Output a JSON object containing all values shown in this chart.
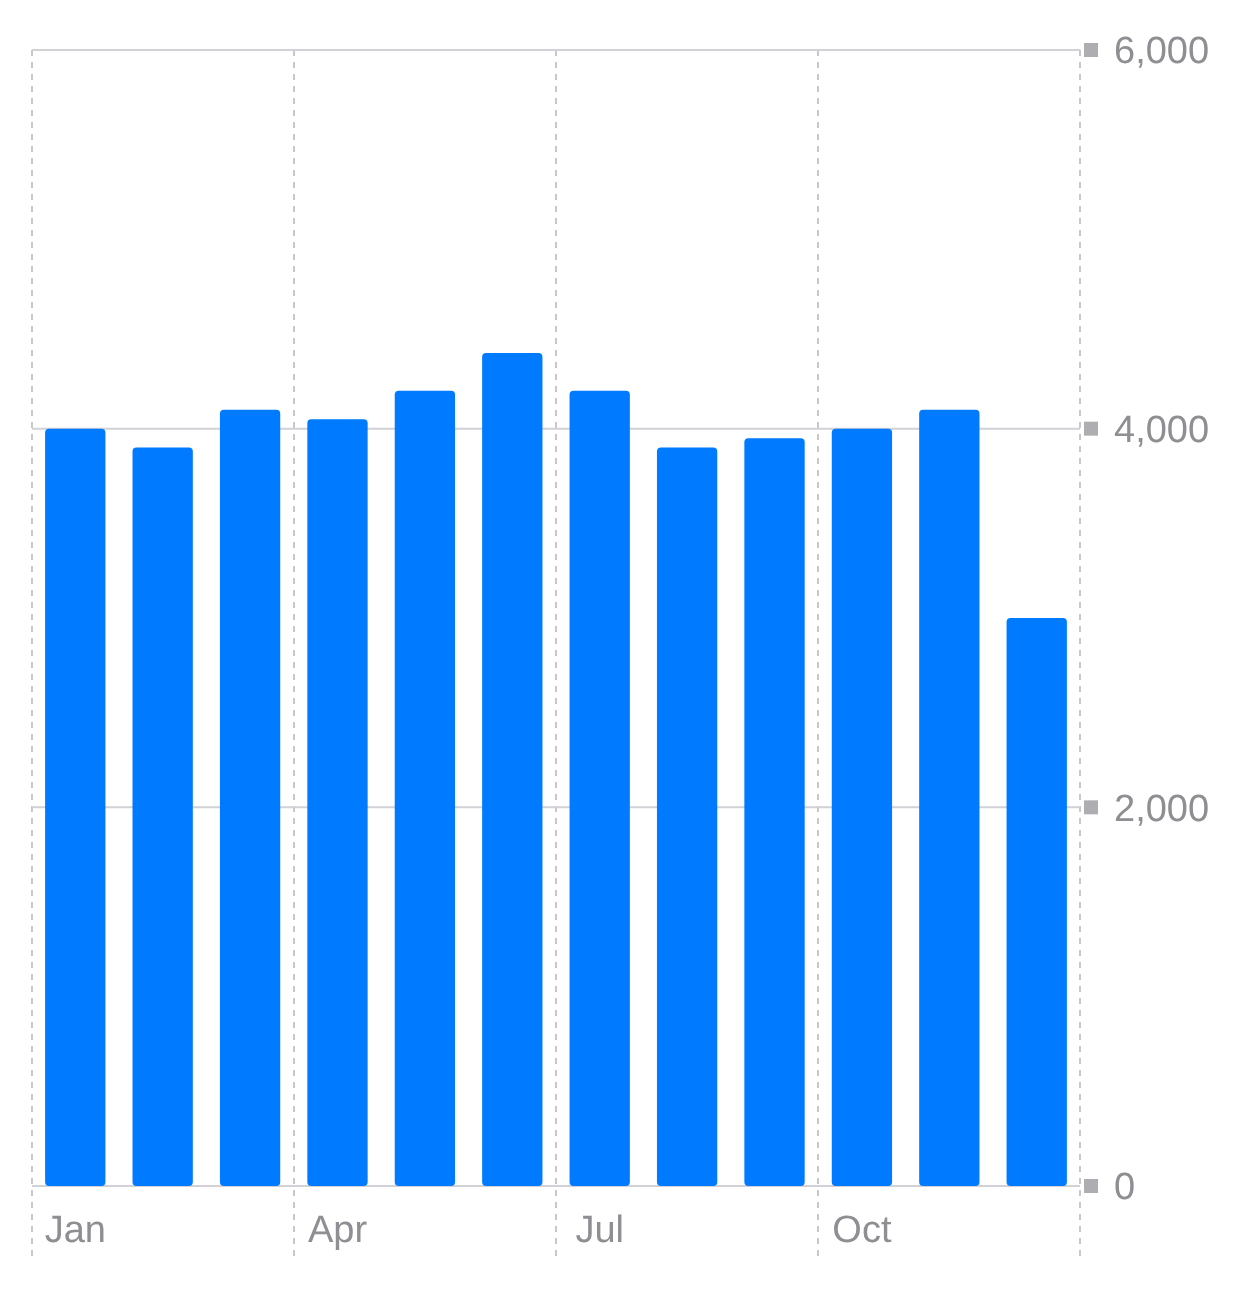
{
  "chart_data": {
    "type": "bar",
    "categories": [
      "Jan",
      null,
      null,
      "Apr",
      null,
      null,
      "Jul",
      null,
      null,
      "Oct",
      null,
      null
    ],
    "values": [
      4000,
      3900,
      4100,
      4050,
      4200,
      4400,
      4200,
      3900,
      3950,
      4000,
      4100,
      3000
    ],
    "color": "#007aff",
    "ylim": [
      0,
      6000
    ],
    "yticks": [
      {
        "value": 0,
        "label": "0"
      },
      {
        "value": 2000,
        "label": "2,000"
      },
      {
        "value": 4000,
        "label": "4,000"
      },
      {
        "value": 6000,
        "label": "6,000"
      }
    ],
    "grid": true
  }
}
